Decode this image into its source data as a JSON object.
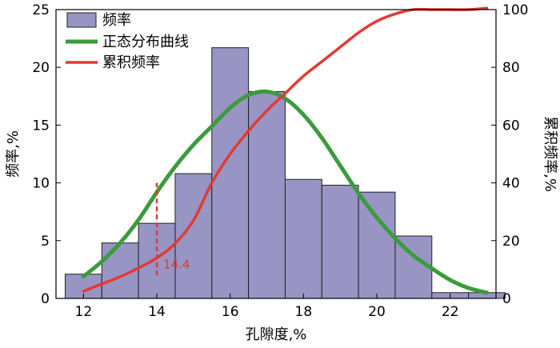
{
  "chart_data": {
    "type": "bar",
    "xlabel": "孔隙度,%",
    "ylabel_left": "频率,%",
    "ylabel_right": "累积频率,%",
    "xlim": [
      11.25,
      23.25
    ],
    "ylim_left": [
      0,
      25
    ],
    "ylim_right": [
      0,
      100
    ],
    "x_ticks": [
      12,
      14,
      16,
      18,
      20,
      22
    ],
    "y_ticks_left": [
      0,
      5,
      10,
      15,
      20,
      25
    ],
    "y_ticks_right": [
      0,
      20,
      40,
      60,
      80,
      100
    ],
    "bin_width": 1,
    "legend_position": "top-left",
    "colors": {
      "bar_fill": "#9894c4",
      "bar_stroke": "#222222",
      "normal_curve": "#3a9c3a",
      "cumulative_curve": "#e23a32",
      "annotation": "#e23a32"
    },
    "series": [
      {
        "name": "频率",
        "type": "bar",
        "axis": "left",
        "bin_starts": [
          11.5,
          12.5,
          13.5,
          14.5,
          15.5,
          16.5,
          17.5,
          18.5,
          19.5,
          20.5,
          21.5,
          22.5
        ],
        "values": [
          2.1,
          4.8,
          6.5,
          10.8,
          21.7,
          17.9,
          10.3,
          9.8,
          9.2,
          5.4,
          0.5,
          0.5
        ]
      },
      {
        "name": "正态分布曲线",
        "type": "line",
        "axis": "left",
        "x": [
          12,
          12.5,
          13,
          13.5,
          14,
          14.5,
          15,
          15.5,
          16,
          16.5,
          17,
          17.5,
          18,
          18.5,
          19,
          19.5,
          20,
          20.5,
          21,
          21.5,
          22,
          22.5,
          23
        ],
        "values": [
          1.9,
          3.2,
          4.8,
          6.8,
          9.2,
          11.4,
          13.3,
          14.9,
          16.5,
          17.6,
          17.9,
          17.3,
          15.9,
          13.9,
          11.5,
          9.1,
          7.0,
          5.2,
          3.7,
          2.6,
          1.6,
          0.9,
          0.5
        ]
      },
      {
        "name": "累积频率",
        "type": "line",
        "axis": "right",
        "x": [
          12,
          12.5,
          13,
          13.5,
          14,
          14.5,
          15,
          15.5,
          16,
          16.5,
          17,
          17.5,
          18,
          18.5,
          19,
          19.5,
          20,
          20.5,
          21,
          21.5,
          22,
          22.5,
          23
        ],
        "values": [
          2.5,
          5,
          7.5,
          10.5,
          14,
          19,
          27,
          40,
          50,
          58,
          65,
          71,
          77,
          82,
          87,
          92,
          96,
          98.5,
          100,
          100,
          100,
          100,
          100.5
        ]
      }
    ],
    "annotations": [
      {
        "text": "14.4",
        "x": 14.0,
        "y_from": 2,
        "y_to": 10
      }
    ]
  }
}
